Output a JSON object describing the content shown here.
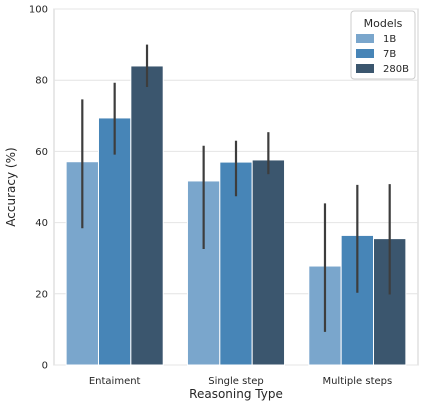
{
  "chart_data": {
    "type": "bar",
    "xlabel": "Reasoning Type",
    "ylabel": "Accuracy (%)",
    "ylim": [
      0,
      100
    ],
    "yticks": [
      0,
      20,
      40,
      60,
      80,
      100
    ],
    "grid": "horizontal",
    "categories": [
      "Entaiment",
      "Single step",
      "Multiple steps"
    ],
    "legend": {
      "title": "Models",
      "placement": "top-right"
    },
    "series": [
      {
        "name": "1B",
        "color": "#7aa6cc",
        "values": [
          57.1,
          51.7,
          27.8
        ],
        "err_low": [
          38.4,
          32.6,
          9.3
        ],
        "err_high": [
          74.6,
          61.6,
          45.4
        ]
      },
      {
        "name": "7B",
        "color": "#4785b7",
        "values": [
          69.4,
          57.0,
          36.4
        ],
        "err_low": [
          59.1,
          47.4,
          20.3
        ],
        "err_high": [
          79.3,
          63.0,
          50.6
        ]
      },
      {
        "name": "280B",
        "color": "#3b566e",
        "values": [
          84.0,
          57.6,
          35.5
        ],
        "err_low": [
          78.1,
          53.6,
          19.8
        ],
        "err_high": [
          90.0,
          65.4,
          50.8
        ]
      }
    ]
  }
}
